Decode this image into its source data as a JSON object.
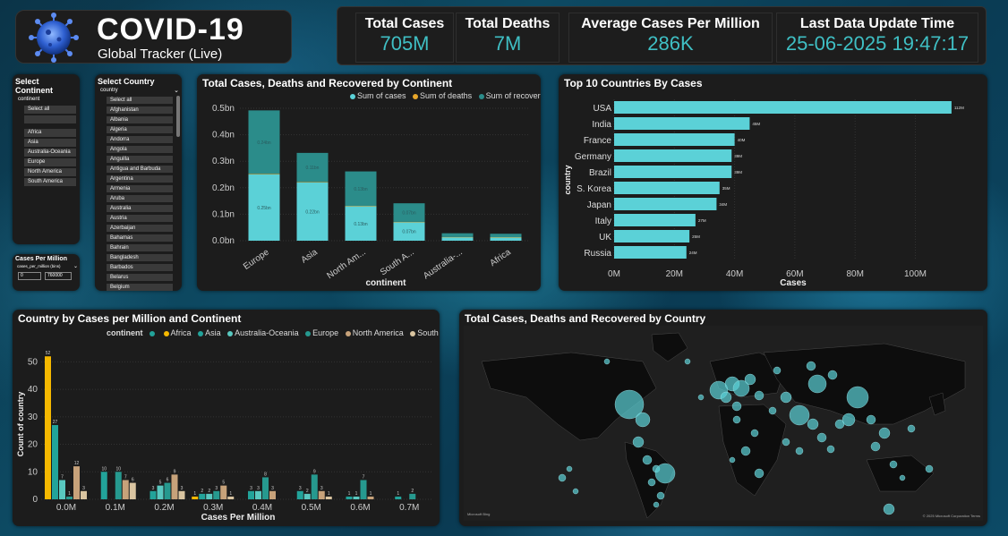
{
  "header": {
    "title": "COVID-19",
    "subtitle": "Global Tracker (Live)"
  },
  "kpis": [
    {
      "label": "Total Cases",
      "value": "705M"
    },
    {
      "label": "Total Deaths",
      "value": "7M"
    },
    {
      "label": "Average Cases Per Million",
      "value": "286K"
    },
    {
      "label": "Last Data Update Time",
      "value": "25-06-2025 19:47:17"
    }
  ],
  "continent_slicer": {
    "title": "Select Continent",
    "field": "continent",
    "items": [
      "Select all",
      "",
      "Africa",
      "Asia",
      "Australia-Oceania",
      "Europe",
      "North America",
      "South America"
    ]
  },
  "country_slicer": {
    "title": "Select Country",
    "field": "country",
    "items": [
      "Select all",
      "Afghanistan",
      "Albania",
      "Algeria",
      "Andorra",
      "Angola",
      "Anguilla",
      "Antigua and Barbuda",
      "Argentina",
      "Armenia",
      "Aruba",
      "Australia",
      "Austria",
      "Azerbaijan",
      "Bahamas",
      "Bahrain",
      "Bangladesh",
      "Barbados",
      "Belarus",
      "Belgium"
    ]
  },
  "cases_slicer": {
    "title": "Cases Per Million",
    "field": "cases_per_million (bins)",
    "min": "0",
    "max": "760000"
  },
  "colors": {
    "accent": "#3fbfc4",
    "cases": "#5bd1d7",
    "deaths": "#e9a72a",
    "recovered": "#2b8c8a",
    "africa": "#f5b800",
    "asia": "#22a39a",
    "oceania": "#59c8c0",
    "europe": "#26998f",
    "north_america": "#c7a27a",
    "south_america": "#d9c4a0"
  },
  "continent_chart": {
    "title": "Total Cases, Deaths and Recovered by Continent",
    "legend": [
      "Sum of cases",
      "Sum of deaths",
      "Sum of recovered"
    ],
    "xlabel": "continent",
    "yticks": [
      "0.0bn",
      "0.1bn",
      "0.2bn",
      "0.3bn",
      "0.4bn",
      "0.5bn"
    ]
  },
  "countries_chart": {
    "title": "Top 10 Countries By Cases",
    "xlabel": "Cases",
    "ylabel": "country",
    "xticks": [
      "0M",
      "20M",
      "40M",
      "60M",
      "80M",
      "100M"
    ]
  },
  "million_chart": {
    "title": "Country by Cases per Million and Continent",
    "legend_label": "continent",
    "legend": [
      "Africa",
      "Asia",
      "Australia-Oceania",
      "Europe",
      "North America",
      "South America"
    ],
    "xlabel": "Cases Per Million",
    "ylabel": "Count of country",
    "yticks": [
      "0",
      "10",
      "20",
      "30",
      "40",
      "50"
    ]
  },
  "map": {
    "title": "Total Cases, Deaths and Recovered by Country",
    "attribution": "© 2025 Microsoft Corporation  Terms",
    "brand": "Microsoft Bing"
  },
  "chart_data": [
    {
      "type": "bar",
      "title": "Total Cases, Deaths and Recovered by Continent",
      "xlabel": "continent",
      "categories": [
        "Europe",
        "Asia",
        "North Am...",
        "South A...",
        "Australia-...",
        "Africa"
      ],
      "series": [
        {
          "name": "Sum of cases",
          "values": [
            0.25,
            0.22,
            0.13,
            0.07,
            0.014,
            0.013
          ],
          "labels": [
            "0.25bn",
            "0.22bn",
            "0.13bn",
            "0.07bn",
            "",
            ""
          ]
        },
        {
          "name": "Sum of deaths",
          "values": [
            0.002,
            0.0015,
            0.0016,
            0.0013,
            0.0001,
            0.0003
          ],
          "labels": [
            "",
            "",
            "",
            "",
            "",
            ""
          ]
        },
        {
          "name": "Sum of recovered",
          "values": [
            0.24,
            0.11,
            0.13,
            0.07,
            0.014,
            0.013
          ],
          "labels": [
            "0.24bn",
            "0.11bn",
            "0.13bn",
            "0.07bn",
            "",
            ""
          ]
        }
      ],
      "ylim": [
        0,
        0.5
      ],
      "stacked": true
    },
    {
      "type": "bar",
      "orientation": "horizontal",
      "title": "Top 10 Countries By Cases",
      "xlabel": "Cases",
      "ylabel": "country",
      "categories": [
        "USA",
        "India",
        "France",
        "Germany",
        "Brazil",
        "S. Korea",
        "Japan",
        "Italy",
        "UK",
        "Russia"
      ],
      "values": [
        112,
        45,
        40,
        39,
        39,
        35,
        34,
        27,
        25,
        24
      ],
      "labels": [
        "112M",
        "45M",
        "40M",
        "39M",
        "39M",
        "35M",
        "34M",
        "27M",
        "25M",
        "24M"
      ],
      "xlim": [
        0,
        115
      ]
    },
    {
      "type": "bar",
      "title": "Country by Cases per Million and Continent",
      "xlabel": "Cases Per Million",
      "ylabel": "Count of country",
      "categories": [
        "0.0M",
        "0.1M",
        "0.2M",
        "0.3M",
        "0.4M",
        "0.5M",
        "0.6M",
        "0.7M"
      ],
      "series": [
        {
          "name": "Africa",
          "values": [
            52,
            0,
            0,
            1,
            0,
            0,
            0,
            0
          ]
        },
        {
          "name": "Asia",
          "values": [
            27,
            10,
            3,
            2,
            3,
            3,
            1,
            1
          ]
        },
        {
          "name": "Australia-Oceania",
          "values": [
            7,
            0,
            5,
            2,
            3,
            2,
            1,
            0
          ]
        },
        {
          "name": "Europe",
          "values": [
            1,
            10,
            6,
            3,
            8,
            9,
            7,
            2
          ]
        },
        {
          "name": "North America",
          "values": [
            12,
            7,
            9,
            5,
            3,
            3,
            1,
            0
          ]
        },
        {
          "name": "South America",
          "values": [
            3,
            6,
            3,
            1,
            0,
            1,
            0,
            0
          ]
        }
      ],
      "ylim": [
        0,
        55
      ]
    }
  ]
}
